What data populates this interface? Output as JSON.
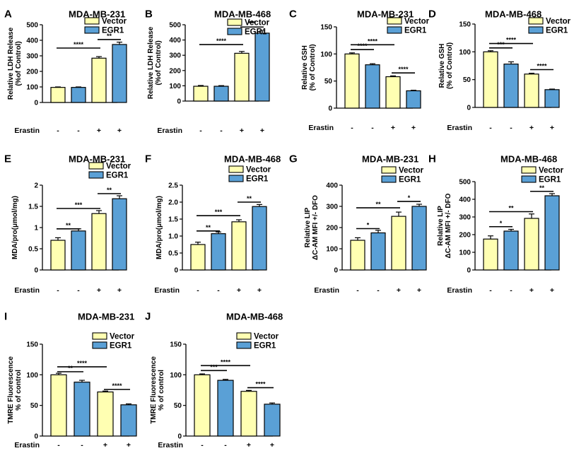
{
  "figure": {
    "background": "#ffffff",
    "vector_color": "#ffffb2",
    "egr1_color": "#5aa0d6"
  },
  "chart_data": [
    {
      "panel": "A",
      "type": "bar",
      "title": "MDA-MB-231",
      "ylabel": [
        "Relative LDH Release",
        "(%of Control)"
      ],
      "ylim": [
        0,
        500
      ],
      "yticks": [
        "0",
        "100",
        "200",
        "300",
        "400",
        "500"
      ],
      "legend": [
        "Vector",
        "EGR1"
      ],
      "treatment_label": "Erastin",
      "treatment": [
        "-",
        "-",
        "+",
        "+"
      ],
      "values": [
        97,
        97,
        285,
        373
      ],
      "errors": [
        3,
        3,
        10,
        15
      ],
      "series_index": [
        0,
        1,
        0,
        1
      ],
      "significance": [
        {
          "from": 0,
          "to": 2,
          "label": "****",
          "y": 350
        },
        {
          "from": 2,
          "to": 3,
          "label": "**",
          "y": 405
        }
      ]
    },
    {
      "panel": "B",
      "type": "bar",
      "title": "MDA-MB-468",
      "ylabel": [
        "Relative LDH Release",
        "(%of Control)"
      ],
      "ylim": [
        0,
        500
      ],
      "yticks": [
        "0",
        "100",
        "200",
        "300",
        "400",
        "500"
      ],
      "legend": [
        "Vector",
        "EGR1"
      ],
      "treatment_label": "Erastin",
      "treatment": [
        "-",
        "-",
        "+",
        "+"
      ],
      "values": [
        97,
        97,
        313,
        445
      ],
      "errors": [
        5,
        4,
        12,
        15
      ],
      "series_index": [
        0,
        1,
        0,
        1
      ],
      "significance": [
        {
          "from": 0,
          "to": 2,
          "label": "****",
          "y": 370
        },
        {
          "from": 2,
          "to": 3,
          "label": "***",
          "y": 485
        }
      ]
    },
    {
      "panel": "C",
      "type": "bar",
      "title": "MDA-MB-231",
      "ylabel": [
        "Relative GSH",
        "(% of Control)"
      ],
      "ylim": [
        0,
        150
      ],
      "yticks": [
        "0",
        "50",
        "100",
        "150"
      ],
      "legend": [
        "Vector",
        "EGR1"
      ],
      "treatment_label": "Erastin",
      "treatment": [
        "-",
        "-",
        "+",
        "+"
      ],
      "values": [
        100,
        80,
        58,
        32
      ],
      "errors": [
        2,
        2,
        1.5,
        1
      ],
      "series_index": [
        0,
        1,
        0,
        1
      ],
      "significance": [
        {
          "from": 0,
          "to": 1,
          "label": "****",
          "y": 108
        },
        {
          "from": 0,
          "to": 2,
          "label": "****",
          "y": 117
        },
        {
          "from": 2,
          "to": 3,
          "label": "****",
          "y": 65
        }
      ]
    },
    {
      "panel": "D",
      "type": "bar",
      "title": "MDA-MB-468",
      "ylabel": [
        "Relative GSH",
        "(% of Control)"
      ],
      "ylim": [
        0,
        150
      ],
      "yticks": [
        "0",
        "50",
        "100",
        "150"
      ],
      "legend": [
        "Vector",
        "EGR1"
      ],
      "treatment_label": "Erastin",
      "treatment": [
        "-",
        "-",
        "+",
        "+"
      ],
      "values": [
        100,
        78,
        60,
        32
      ],
      "errors": [
        2,
        4,
        1.5,
        1
      ],
      "series_index": [
        0,
        1,
        0,
        1
      ],
      "significance": [
        {
          "from": 0,
          "to": 1,
          "label": "***",
          "y": 107
        },
        {
          "from": 0,
          "to": 2,
          "label": "****",
          "y": 115
        },
        {
          "from": 2,
          "to": 3,
          "label": "****",
          "y": 68
        }
      ]
    },
    {
      "panel": "E",
      "type": "bar",
      "title": "MDA-MB-231",
      "ylabel": [
        "MDA/pro(μmol/mg)"
      ],
      "ylim": [
        0,
        2.0
      ],
      "yticks": [
        "0",
        "0.5",
        "1",
        "1.5",
        "2"
      ],
      "legend": [
        "Vector",
        "EGR1"
      ],
      "treatment_label": "Erastin",
      "treatment": [
        "-",
        "-",
        "+",
        "+"
      ],
      "values": [
        0.7,
        0.92,
        1.33,
        1.68
      ],
      "errors": [
        0.06,
        0.05,
        0.07,
        0.07
      ],
      "series_index": [
        0,
        1,
        0,
        1
      ],
      "significance": [
        {
          "from": 0,
          "to": 1,
          "label": "**",
          "y": 0.97
        },
        {
          "from": 0,
          "to": 2,
          "label": "***",
          "y": 1.45
        },
        {
          "from": 2,
          "to": 3,
          "label": "**",
          "y": 1.8
        }
      ]
    },
    {
      "panel": "F",
      "type": "bar",
      "title": "MDA-MB-468",
      "ylabel": [
        "MDA/pro(μmol/mg)"
      ],
      "ylim": [
        0,
        2.5
      ],
      "yticks": [
        "0",
        "0.5",
        "1.0",
        "1.5",
        "2.0",
        "2.5"
      ],
      "legend": [
        "Vector",
        "EGR1"
      ],
      "treatment_label": "Erastin",
      "treatment": [
        "-",
        "-",
        "+",
        "+"
      ],
      "values": [
        0.75,
        1.07,
        1.42,
        1.87
      ],
      "errors": [
        0.07,
        0.05,
        0.06,
        0.06
      ],
      "series_index": [
        0,
        1,
        0,
        1
      ],
      "significance": [
        {
          "from": 0,
          "to": 1,
          "label": "**",
          "y": 1.15
        },
        {
          "from": 0,
          "to": 2,
          "label": "***",
          "y": 1.6
        },
        {
          "from": 2,
          "to": 3,
          "label": "**",
          "y": 2.0
        }
      ]
    },
    {
      "panel": "G",
      "type": "bar",
      "title": "MDA-MB-231",
      "ylabel": [
        "Relative LIP",
        "ΔC-AM MFI +/- DFO"
      ],
      "ylim": [
        0,
        400
      ],
      "yticks": [
        "0",
        "100",
        "200",
        "300",
        "400"
      ],
      "legend": [
        "Vector",
        "EGR1"
      ],
      "treatment_label": "Erastin",
      "treatment": [
        "-",
        "-",
        "+",
        "+"
      ],
      "values": [
        140,
        175,
        253,
        300
      ],
      "errors": [
        12,
        12,
        20,
        10
      ],
      "series_index": [
        0,
        1,
        0,
        1
      ],
      "significance": [
        {
          "from": 0,
          "to": 1,
          "label": "*",
          "y": 195
        },
        {
          "from": 0,
          "to": 2,
          "label": "**",
          "y": 293
        },
        {
          "from": 2,
          "to": 3,
          "label": "*",
          "y": 323
        }
      ]
    },
    {
      "panel": "H",
      "type": "bar",
      "title": "MDA-MB-468",
      "ylabel": [
        "Relative LIP",
        "ΔC-AM MFI +/- DFO"
      ],
      "ylim": [
        0,
        500
      ],
      "yticks": [
        "0",
        "100",
        "200",
        "300",
        "400",
        "500"
      ],
      "legend": [
        "Vector",
        "EGR1"
      ],
      "treatment_label": "Erastin",
      "treatment": [
        "-",
        "-",
        "+",
        "+"
      ],
      "values": [
        175,
        220,
        292,
        420
      ],
      "errors": [
        18,
        10,
        25,
        12
      ],
      "series_index": [
        0,
        1,
        0,
        1
      ],
      "significance": [
        {
          "from": 0,
          "to": 1,
          "label": "*",
          "y": 245
        },
        {
          "from": 0,
          "to": 2,
          "label": "**",
          "y": 330
        },
        {
          "from": 2,
          "to": 3,
          "label": "**",
          "y": 445
        }
      ]
    },
    {
      "panel": "I",
      "type": "bar",
      "title": "MDA-MB-231",
      "ylabel": [
        "TMRE Fluorescence",
        "% of control"
      ],
      "ylim": [
        0,
        150
      ],
      "yticks": [
        "0",
        "50",
        "100",
        "150"
      ],
      "legend": [
        "Vector",
        "EGR1"
      ],
      "treatment_label": "Erastin",
      "treatment": [
        "-",
        "-",
        "+",
        "+"
      ],
      "values": [
        100,
        88,
        72,
        51
      ],
      "errors": [
        2.5,
        3,
        1.5,
        1.5
      ],
      "series_index": [
        0,
        1,
        0,
        1
      ],
      "significance": [
        {
          "from": 0,
          "to": 1,
          "label": "**",
          "y": 105
        },
        {
          "from": 0,
          "to": 2,
          "label": "****",
          "y": 113
        },
        {
          "from": 2,
          "to": 3,
          "label": "****",
          "y": 76
        }
      ]
    },
    {
      "panel": "J",
      "type": "bar",
      "title": "MDA-MB-468",
      "ylabel": [
        "TMRE Fluorescence",
        "% of control"
      ],
      "ylim": [
        0,
        150
      ],
      "yticks": [
        "0",
        "50",
        "100",
        "150"
      ],
      "legend": [
        "Vector",
        "EGR1"
      ],
      "treatment_label": "Erastin",
      "treatment": [
        "-",
        "-",
        "+",
        "+"
      ],
      "values": [
        100,
        91,
        73,
        52
      ],
      "errors": [
        1.5,
        1.5,
        1.5,
        2
      ],
      "series_index": [
        0,
        1,
        0,
        1
      ],
      "significance": [
        {
          "from": 0,
          "to": 1,
          "label": "***",
          "y": 107
        },
        {
          "from": 0,
          "to": 2,
          "label": "****",
          "y": 115
        },
        {
          "from": 2,
          "to": 3,
          "label": "****",
          "y": 79
        }
      ]
    }
  ]
}
